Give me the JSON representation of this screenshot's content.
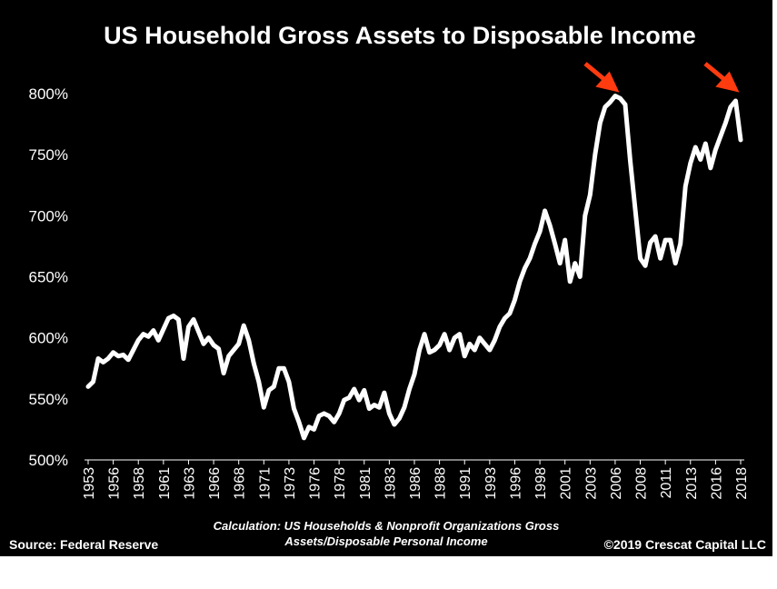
{
  "chart_data": {
    "type": "line",
    "title": "US Household Gross Assets to Disposable Income",
    "source": "Source: Federal Reserve",
    "caption": "Calculation: US Households & Nonprofit Organizations Gross Assets/Disposable Personal Income",
    "copyright": "©2019 Crescat Capital LLC",
    "color": "#ffffff",
    "x": [
      1953,
      1953.5,
      1954,
      1954.5,
      1955,
      1955.5,
      1956,
      1956.5,
      1957,
      1957.5,
      1958,
      1958.5,
      1959,
      1959.5,
      1960,
      1960.5,
      1961,
      1961.5,
      1962,
      1962.5,
      1963,
      1963.5,
      1964,
      1964.5,
      1965,
      1965.5,
      1966,
      1966.5,
      1967,
      1967.5,
      1968,
      1968.5,
      1969,
      1969.5,
      1970,
      1970.5,
      1971,
      1971.5,
      1972,
      1972.5,
      1973,
      1973.5,
      1974,
      1974.5,
      1975,
      1975.5,
      1976,
      1976.5,
      1977,
      1977.5,
      1978,
      1978.5,
      1979,
      1979.5,
      1980,
      1980.5,
      1981,
      1981.5,
      1982,
      1982.5,
      1983,
      1983.5,
      1984,
      1984.5,
      1985,
      1985.5,
      1986,
      1986.5,
      1987,
      1987.5,
      1988,
      1988.5,
      1989,
      1989.5,
      1990,
      1990.5,
      1991,
      1991.5,
      1992,
      1992.5,
      1993,
      1993.5,
      1994,
      1994.5,
      1995,
      1995.5,
      1996,
      1996.5,
      1997,
      1997.5,
      1998,
      1998.5,
      1999,
      1999.5,
      2000,
      2000.5,
      2001,
      2001.5,
      2002,
      2002.5,
      2003,
      2003.5,
      2004,
      2004.5,
      2005,
      2005.5,
      2006,
      2006.5,
      2007,
      2007.5,
      2008,
      2008.5,
      2009,
      2009.5,
      2010,
      2010.5,
      2011,
      2011.5,
      2012,
      2012.5,
      2013,
      2013.5,
      2014,
      2014.5,
      2015,
      2015.5,
      2016,
      2016.5,
      2017,
      2017.5,
      2018
    ],
    "values": [
      560,
      564,
      583,
      580,
      583,
      588,
      585,
      586,
      582,
      590,
      598,
      603,
      601,
      606,
      598,
      607,
      616,
      618,
      615,
      583,
      609,
      615,
      605,
      595,
      600,
      594,
      591,
      571,
      585,
      590,
      595,
      610,
      598,
      579,
      564,
      543,
      557,
      560,
      575,
      575,
      564,
      542,
      531,
      518,
      527,
      525,
      536,
      538,
      536,
      531,
      538,
      549,
      551,
      558,
      549,
      557,
      542,
      545,
      543,
      555,
      538,
      529,
      534,
      543,
      558,
      570,
      590,
      603,
      588,
      590,
      594,
      603,
      590,
      600,
      603,
      585,
      595,
      590,
      600,
      595,
      590,
      598,
      609,
      616,
      620,
      631,
      646,
      657,
      665,
      677,
      687,
      704,
      692,
      677,
      661,
      680,
      646,
      661,
      650,
      700,
      717,
      750,
      776,
      789,
      793,
      798,
      796,
      791,
      745,
      705,
      665,
      659,
      678,
      683,
      665,
      680,
      680,
      661,
      677,
      724,
      743,
      756,
      746,
      759,
      739,
      754,
      765,
      776,
      789,
      794,
      762
    ],
    "xlim": [
      1953,
      2018
    ],
    "xticks": [
      1953,
      {
        "value": 1955.5,
        "label": "1956"
      },
      1958,
      {
        "value": 1960.5,
        "label": "1961"
      },
      1963,
      {
        "value": 1965.5,
        "label": "1966"
      },
      1968,
      {
        "value": 1970.5,
        "label": "1971"
      },
      1973,
      {
        "value": 1975.5,
        "label": "1976"
      },
      1978,
      {
        "value": 1980.5,
        "label": "1981"
      },
      1983,
      {
        "value": 1985.5,
        "label": "1986"
      },
      1988,
      {
        "value": 1990.5,
        "label": "1991"
      },
      1993,
      {
        "value": 1995.5,
        "label": "1996"
      },
      1998,
      {
        "value": 2000.5,
        "label": "2001"
      },
      2003,
      {
        "value": 2005.5,
        "label": "2006"
      },
      2008,
      {
        "value": 2010.5,
        "label": "2011"
      },
      2013,
      {
        "value": 2015.5,
        "label": "2016"
      },
      2018
    ],
    "ylim": [
      500,
      820
    ],
    "yticks": [
      {
        "value": 500,
        "label": "500%"
      },
      {
        "value": 550,
        "label": "550%"
      },
      {
        "value": 600,
        "label": "600%"
      },
      {
        "value": 650,
        "label": "650%"
      },
      {
        "value": 700,
        "label": "700%"
      },
      {
        "value": 750,
        "label": "750%"
      },
      {
        "value": 800,
        "label": "800%"
      }
    ],
    "grid": false
  }
}
